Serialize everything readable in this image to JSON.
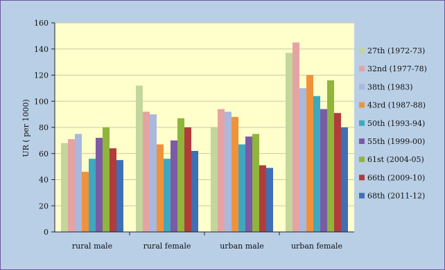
{
  "chart_data": {
    "type": "bar",
    "title": "",
    "xlabel": "",
    "ylabel": "UR ( per 1000)",
    "ylim": [
      0,
      160
    ],
    "yticks": [
      "0",
      "20",
      "40",
      "60",
      "80",
      "100",
      "120",
      "140",
      "160"
    ],
    "grid": true,
    "legend_position": "right",
    "categories": [
      "rural male",
      "rural female",
      "urban male",
      "urban female"
    ],
    "series": [
      {
        "name": "27th (1972-73)",
        "color": "#c3d69b",
        "values": [
          68,
          112,
          80,
          137
        ]
      },
      {
        "name": "32nd (1977-78)",
        "color": "#e6a3a3",
        "values": [
          71,
          92,
          94,
          145
        ]
      },
      {
        "name": "38th (1983)",
        "color": "#a9b8dc",
        "values": [
          75,
          90,
          92,
          110
        ]
      },
      {
        "name": "43rd (1987-88)",
        "color": "#f0923a",
        "values": [
          46,
          67,
          88,
          120
        ]
      },
      {
        "name": "50th (1993-94)",
        "color": "#3fa8c0",
        "values": [
          56,
          56,
          67,
          104
        ]
      },
      {
        "name": "55th (1999-00)",
        "color": "#7b5aa6",
        "values": [
          72,
          70,
          73,
          94
        ]
      },
      {
        "name": "61st (2004-05)",
        "color": "#8fb53b",
        "values": [
          80,
          87,
          75,
          116
        ]
      },
      {
        "name": "66th (2009-10)",
        "color": "#b23b3b",
        "values": [
          64,
          80,
          51,
          91
        ]
      },
      {
        "name": "68th (2011-12)",
        "color": "#3f6fb5",
        "values": [
          55,
          62,
          49,
          80
        ]
      }
    ]
  }
}
